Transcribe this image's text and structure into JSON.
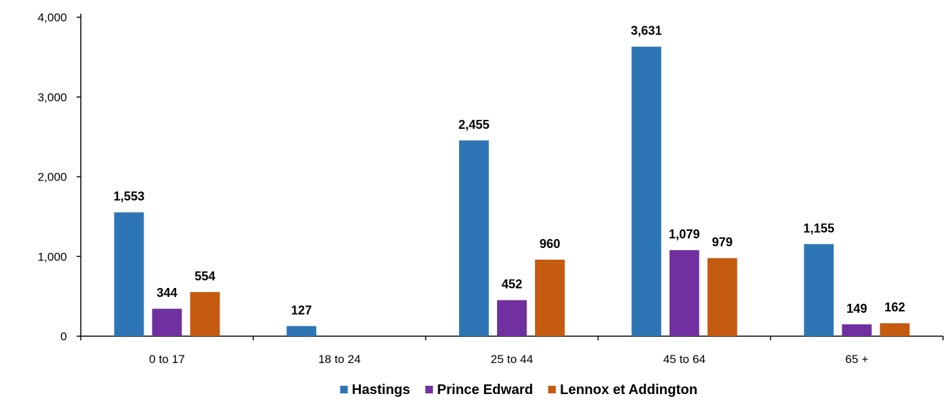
{
  "chart_data": {
    "type": "bar",
    "categories": [
      "0 to 17",
      "18 to 24",
      "25 to 44",
      "45 to 64",
      "65 +"
    ],
    "series": [
      {
        "name": "Hastings",
        "values": [
          1553,
          127,
          2455,
          3631,
          1155
        ],
        "color": "#2E75B6"
      },
      {
        "name": "Prince Edward",
        "values": [
          344,
          null,
          452,
          1079,
          149
        ],
        "color": "#7030A0"
      },
      {
        "name": "Lennox et Addington",
        "values": [
          554,
          null,
          960,
          979,
          162
        ],
        "color": "#C55A11"
      }
    ],
    "ylim": [
      0,
      4000
    ],
    "yticks": [
      0,
      1000,
      2000,
      3000,
      4000
    ],
    "ytick_labels": [
      "0",
      "1,000",
      "2,000",
      "3,000",
      "4,000"
    ],
    "legend_position": "bottom",
    "grid": false
  }
}
